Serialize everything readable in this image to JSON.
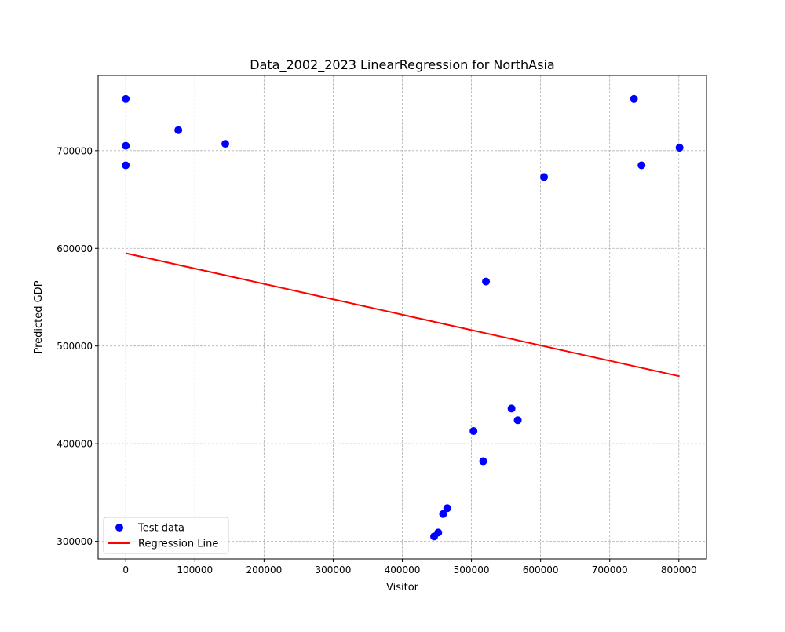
{
  "chart_data": {
    "type": "scatter",
    "title": "Data_2002_2023 LinearRegression for NorthAsia",
    "xlabel": "Visitor",
    "ylabel": "Predicted GDP",
    "xlim": [
      -40000,
      840000
    ],
    "ylim": [
      282000,
      777000
    ],
    "xticks": [
      0,
      100000,
      200000,
      300000,
      400000,
      500000,
      600000,
      700000,
      800000
    ],
    "xtick_labels": [
      "0",
      "100000",
      "200000",
      "300000",
      "400000",
      "500000",
      "600000",
      "700000",
      "800000"
    ],
    "yticks": [
      300000,
      400000,
      500000,
      600000,
      700000
    ],
    "ytick_labels": [
      "300000",
      "400000",
      "500000",
      "600000",
      "700000"
    ],
    "grid": true,
    "legend_position": "lower-left",
    "series": [
      {
        "name": "Test data",
        "kind": "scatter",
        "color": "#0000ff",
        "points": [
          [
            0,
            753000
          ],
          [
            0,
            705000
          ],
          [
            0,
            685000
          ],
          [
            76000,
            721000
          ],
          [
            144000,
            707000
          ],
          [
            446000,
            305000
          ],
          [
            452000,
            309000
          ],
          [
            459000,
            328000
          ],
          [
            465000,
            334000
          ],
          [
            503000,
            413000
          ],
          [
            517000,
            382000
          ],
          [
            521000,
            566000
          ],
          [
            558000,
            436000
          ],
          [
            567000,
            424000
          ],
          [
            605000,
            673000
          ],
          [
            735000,
            753000
          ],
          [
            746000,
            685000
          ],
          [
            801000,
            703000
          ]
        ]
      },
      {
        "name": "Regression Line",
        "kind": "line",
        "color": "#ff0000",
        "points": [
          [
            0,
            595000
          ],
          [
            801000,
            469000
          ]
        ]
      }
    ]
  }
}
